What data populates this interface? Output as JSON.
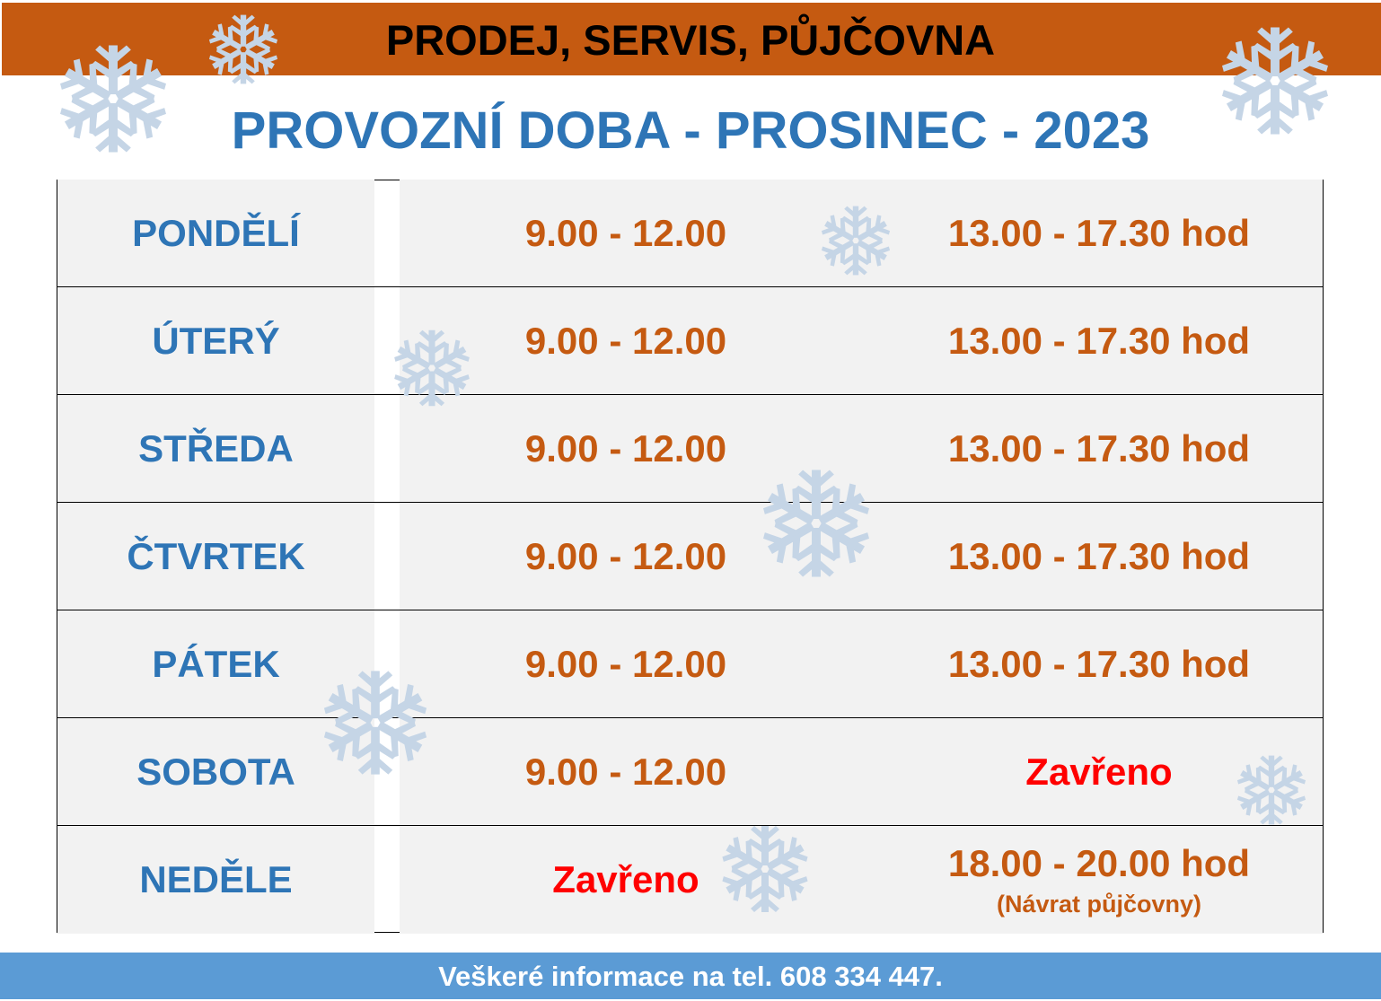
{
  "header": {
    "title": "PRODEJ, SERVIS, PŮJČOVNA"
  },
  "title": "PROVOZNÍ DOBA - PROSINEC - 2023",
  "schedule": [
    {
      "day": "PONDĚLÍ",
      "morning": "9.00 - 12.00",
      "afternoon": "13.00 - 17.30 hod"
    },
    {
      "day": "ÚTERÝ",
      "morning": "9.00 - 12.00",
      "afternoon": "13.00 - 17.30 hod"
    },
    {
      "day": "STŘEDA",
      "morning": "9.00 - 12.00",
      "afternoon": "13.00 - 17.30 hod"
    },
    {
      "day": "ČTVRTEK",
      "morning": "9.00 - 12.00",
      "afternoon": "13.00 - 17.30 hod"
    },
    {
      "day": "PÁTEK",
      "morning": "9.00 - 12.00",
      "afternoon": "13.00 - 17.30 hod"
    },
    {
      "day": "SOBOTA",
      "morning": "9.00 - 12.00",
      "afternoon": "Zavřeno"
    },
    {
      "day": "NEDĚLE",
      "morning": "Zavřeno",
      "afternoon": "18.00 - 20.00 hod",
      "note": "(Návrat půjčovny)"
    }
  ],
  "footer": {
    "text": "Veškeré informace na tel. 608 334 447."
  },
  "colors": {
    "header": "#c55a11",
    "title": "#2e75b6",
    "time": "#c55a11",
    "closed": "#ff0000",
    "footer": "#5b9bd5",
    "snowflake": "#c5d5e6"
  },
  "decorations": {
    "icon": "snowflake-icon"
  }
}
